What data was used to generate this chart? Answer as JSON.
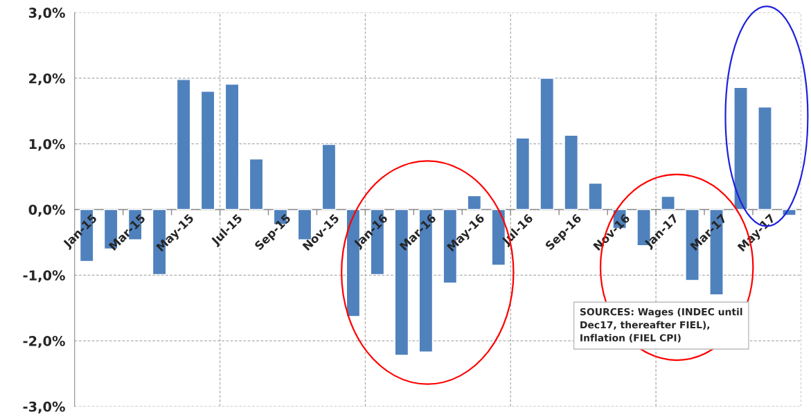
{
  "chart_data": {
    "type": "bar",
    "categories": [
      "Jan-15",
      null,
      "Mar-15",
      null,
      "May-15",
      null,
      "Jul-15",
      null,
      "Sep-15",
      null,
      "Nov-15",
      null,
      "Jan-16",
      null,
      "Mar-16",
      null,
      "May-16",
      null,
      "Jul-16",
      null,
      "Sep-16",
      null,
      "Nov-16",
      null,
      "Jan-17",
      null,
      "Mar-17",
      null,
      "May-17",
      null
    ],
    "values": [
      -0.79,
      -0.6,
      -0.46,
      -0.99,
      1.98,
      1.8,
      1.91,
      0.77,
      -0.23,
      -0.46,
      0.99,
      -1.63,
      -0.99,
      -2.22,
      -2.17,
      -1.12,
      0.21,
      -0.85,
      1.09,
      2.0,
      1.13,
      0.4,
      -0.29,
      -0.55,
      0.2,
      -1.08,
      -1.3,
      1.86,
      1.56,
      -0.09
    ],
    "color": "#4f81bd",
    "ylim": [
      -3,
      3
    ],
    "yticks": [
      {
        "value": -3,
        "label": "-3,0%"
      },
      {
        "value": -2,
        "label": "-2,0%"
      },
      {
        "value": -1,
        "label": "-1,0%"
      },
      {
        "value": 0,
        "label": "0,0%"
      },
      {
        "value": 1,
        "label": "1,0%"
      },
      {
        "value": 2,
        "label": "2,0%"
      },
      {
        "value": 3,
        "label": "3,0%"
      }
    ],
    "grid": true,
    "annotations": [
      "SOURCES: Wages (INDEC until\nDec17, thereafter FIEL),\nInflation (FIEL CPI)"
    ]
  }
}
